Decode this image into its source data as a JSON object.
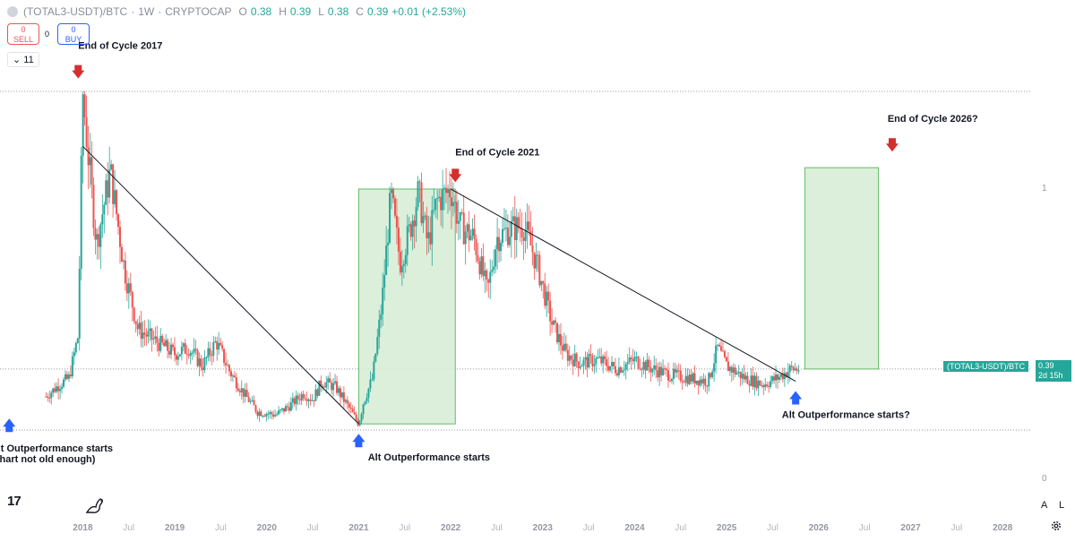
{
  "header": {
    "symbol": "(TOTAL3-USDT)/BTC",
    "interval": "1W",
    "exchange": "CRYPTOCAP",
    "sep1": "·",
    "sep2": "·",
    "open_label": "O",
    "open": "0.38",
    "high_label": "H",
    "high": "0.39",
    "low_label": "L",
    "low": "0.38",
    "close_label": "C",
    "close": "0.39",
    "change": "+0.01 (+2.53%)"
  },
  "trade": {
    "sell_price": "0",
    "sell_label": "SELL",
    "spread": "0",
    "buy_price": "0",
    "buy_label": "BUY"
  },
  "indicator_count": "11",
  "price_tag": {
    "symbol": "(TOTAL3-USDT)/BTC",
    "price": "0.39",
    "countdown": "2d 15h"
  },
  "price_axis_labels": [
    {
      "label": "1",
      "value": 1
    },
    {
      "label": "0",
      "value": 0
    }
  ],
  "axis_buttons": {
    "auto": "A",
    "log": "L"
  },
  "colors": {
    "up": "#26a69a",
    "down": "#ef5350",
    "box_fill": "#d5ecd4",
    "box_stroke": "#66bb6a",
    "arrow_down": "#d32f2f",
    "arrow_up": "#2962ff",
    "trendline": "#131722"
  },
  "chart_data": {
    "type": "candlestick",
    "x_axis": {
      "ticks": [
        "2018",
        "Jul",
        "2019",
        "Jul",
        "2020",
        "Jul",
        "2021",
        "Jul",
        "2022",
        "Jul",
        "2023",
        "Jul",
        "2024",
        "Jul",
        "2025",
        "Jul",
        "2026",
        "Jul",
        "2027",
        "Jul",
        "2028"
      ],
      "tick_dates": [
        2018.0,
        2018.5,
        2019.0,
        2019.5,
        2020.0,
        2020.5,
        2021.0,
        2021.5,
        2022.0,
        2022.5,
        2023.0,
        2023.5,
        2024.0,
        2024.5,
        2025.0,
        2025.5,
        2026.0,
        2026.5,
        2027.0,
        2027.5,
        2028.0
      ],
      "range": [
        2017.1,
        2028.3
      ]
    },
    "price_path": [
      [
        2017.6,
        0.3
      ],
      [
        2017.75,
        0.34
      ],
      [
        2017.85,
        0.36
      ],
      [
        2017.95,
        0.5
      ],
      [
        2018.0,
        1.3
      ],
      [
        2018.05,
        1.12
      ],
      [
        2018.15,
        0.8
      ],
      [
        2018.3,
        1.04
      ],
      [
        2018.45,
        0.72
      ],
      [
        2018.6,
        0.52
      ],
      [
        2018.8,
        0.48
      ],
      [
        2019.0,
        0.44
      ],
      [
        2019.15,
        0.46
      ],
      [
        2019.3,
        0.4
      ],
      [
        2019.45,
        0.48
      ],
      [
        2019.6,
        0.38
      ],
      [
        2019.75,
        0.31
      ],
      [
        2019.9,
        0.25
      ],
      [
        2020.1,
        0.24
      ],
      [
        2020.25,
        0.27
      ],
      [
        2020.4,
        0.31
      ],
      [
        2020.5,
        0.29
      ],
      [
        2020.6,
        0.35
      ],
      [
        2020.75,
        0.33
      ],
      [
        2020.9,
        0.26
      ],
      [
        2021.0,
        0.21
      ],
      [
        2021.05,
        0.28
      ],
      [
        2021.15,
        0.36
      ],
      [
        2021.25,
        0.6
      ],
      [
        2021.35,
        0.96
      ],
      [
        2021.45,
        0.74
      ],
      [
        2021.55,
        0.84
      ],
      [
        2021.65,
        0.97
      ],
      [
        2021.75,
        0.8
      ],
      [
        2021.85,
        0.94
      ],
      [
        2022.0,
        0.98
      ],
      [
        2022.1,
        0.86
      ],
      [
        2022.25,
        0.82
      ],
      [
        2022.4,
        0.64
      ],
      [
        2022.5,
        0.82
      ],
      [
        2022.65,
        0.85
      ],
      [
        2022.8,
        0.86
      ],
      [
        2022.95,
        0.72
      ],
      [
        2023.1,
        0.54
      ],
      [
        2023.25,
        0.44
      ],
      [
        2023.4,
        0.41
      ],
      [
        2023.6,
        0.42
      ],
      [
        2023.8,
        0.39
      ],
      [
        2024.0,
        0.42
      ],
      [
        2024.2,
        0.39
      ],
      [
        2024.4,
        0.37
      ],
      [
        2024.6,
        0.36
      ],
      [
        2024.8,
        0.35
      ],
      [
        2024.9,
        0.46
      ],
      [
        2025.0,
        0.4
      ],
      [
        2025.2,
        0.36
      ],
      [
        2025.4,
        0.34
      ],
      [
        2025.55,
        0.36
      ],
      [
        2025.7,
        0.39
      ],
      [
        2025.8,
        0.39
      ]
    ],
    "trendlines": [
      {
        "from": [
          2018.0,
          1.12
        ],
        "to": [
          2021.0,
          0.21
        ]
      },
      {
        "from": [
          2022.0,
          0.98
        ],
        "to": [
          2025.75,
          0.35
        ]
      }
    ],
    "horizontal_lines": [
      {
        "date_range": [
          2017.1,
          2028.3
        ],
        "value": 1.3
      },
      {
        "date_range": [
          2017.1,
          2028.3
        ],
        "value": 0.39
      },
      {
        "date_range": [
          2017.1,
          2028.3
        ],
        "value": 0.19
      }
    ],
    "boxes": [
      {
        "date_range": [
          2021.0,
          2022.05
        ],
        "value_range": [
          0.21,
          0.98
        ]
      },
      {
        "date_range": [
          2025.85,
          2026.65
        ],
        "value_range": [
          0.39,
          1.05
        ]
      }
    ],
    "annotations": [
      {
        "text": "End of Cycle 2017",
        "date": 2017.95,
        "value": 1.44,
        "arrow": "down",
        "arrow_date": 2017.95,
        "arrow_value": 1.36
      },
      {
        "text": "End of Cycle 2021",
        "date": 2022.05,
        "value": 1.09,
        "arrow": "down",
        "arrow_date": 2022.05,
        "arrow_value": 1.02
      },
      {
        "text": "End of Cycle 2026?",
        "date": 2026.75,
        "value": 1.2,
        "arrow": "down",
        "arrow_date": 2026.8,
        "arrow_value": 1.12
      },
      {
        "text": "Alt Outperformance starts",
        "text2": "(chart not old enough)",
        "date": 2017.0,
        "value": 0.12,
        "arrow": "up",
        "arrow_date": 2017.2,
        "arrow_value": 0.21
      },
      {
        "text": "Alt Outperformance starts",
        "date": 2021.1,
        "value": 0.09,
        "arrow": "up",
        "arrow_date": 2021.0,
        "arrow_value": 0.16
      },
      {
        "text": "Alt Outperformance starts?",
        "date": 2025.6,
        "value": 0.23,
        "arrow": "up",
        "arrow_date": 2025.75,
        "arrow_value": 0.3
      }
    ]
  }
}
